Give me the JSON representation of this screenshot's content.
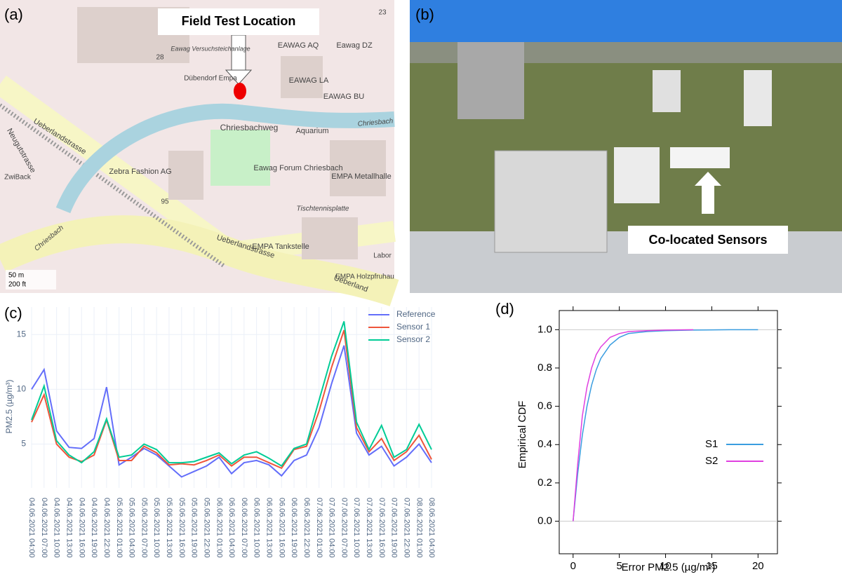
{
  "map": {
    "label": "(a)",
    "callout": "Field Test Location",
    "places": [
      "Eawag Versuchsteichanlage",
      "EAWAG AQ",
      "Eawag DZ",
      "Dübendorf Empa",
      "EAWAG LA",
      "EAWAG BU",
      "Chriesbachweg",
      "Aquarium",
      "Chriesbach",
      "Ueberlandstrasse",
      "Neugutstrasse",
      "Zebra Fashion AG",
      "Eawag Forum Chriesbach",
      "EMPA Metallhalle",
      "Tischtennisplatte",
      "EMPA Tankstelle",
      "EMPA Holzpfruhau",
      "Labor",
      "Ueberlandstrasse",
      "Ueberland",
      "Chriesbach",
      "ZwiBack",
      "28",
      "95",
      "23"
    ],
    "scale": [
      "50 m",
      "200 ft"
    ]
  },
  "photo": {
    "label": "(b)",
    "callout": "Co-located Sensors"
  },
  "chart_data": [
    {
      "type": "line",
      "panel_label": "(c)",
      "y_label": "PM2.5 (µg/m³)",
      "categories": [
        "04.06.2021 04:00",
        "04.06.2021 07:00",
        "04.06.2021 10:00",
        "04.06.2021 13:00",
        "04.06.2021 16:00",
        "04.06.2021 19:00",
        "04.06.2021 22:00",
        "05.06.2021 01:00",
        "05.06.2021 04:00",
        "05.06.2021 07:00",
        "05.06.2021 10:00",
        "05.06.2021 13:00",
        "05.06.2021 16:00",
        "05.06.2021 19:00",
        "05.06.2021 22:00",
        "06.06.2021 01:00",
        "06.06.2021 04:00",
        "06.06.2021 07:00",
        "06.06.2021 10:00",
        "06.06.2021 13:00",
        "06.06.2021 16:00",
        "06.06.2021 19:00",
        "06.06.2021 22:00",
        "07.06.2021 01:00",
        "07.06.2021 04:00",
        "07.06.2021 07:00",
        "07.06.2021 10:00",
        "07.06.2021 13:00",
        "07.06.2021 16:00",
        "07.06.2021 19:00",
        "07.06.2021 22:00",
        "08.06.2021 01:00",
        "08.06.2021 04:00"
      ],
      "series": [
        {
          "name": "Reference",
          "color": "#636efa",
          "values": [
            10,
            11.8,
            6.2,
            4.7,
            4.6,
            5.5,
            10.2,
            3.1,
            3.8,
            4.6,
            4,
            3,
            2,
            2.5,
            3,
            3.8,
            2.3,
            3.3,
            3.5,
            3.1,
            2.1,
            3.5,
            4,
            6.5,
            10.5,
            14,
            6,
            4,
            4.8,
            3,
            3.8,
            5,
            3.3
          ]
        },
        {
          "name": "Sensor 1",
          "color": "#ef553b",
          "values": [
            7,
            9.5,
            5,
            3.8,
            3.4,
            4,
            7.2,
            3.5,
            3.5,
            4.8,
            4.2,
            3.1,
            3.2,
            3.1,
            3.5,
            4,
            3,
            3.8,
            3.8,
            3.3,
            2.8,
            4.5,
            4.8,
            8,
            12,
            15.4,
            6.5,
            4.3,
            5.5,
            3.5,
            4.3,
            5.8,
            3.6
          ]
        },
        {
          "name": "Sensor 2",
          "color": "#00cc96",
          "values": [
            7.2,
            10.3,
            5.3,
            4,
            3.3,
            4.3,
            7.3,
            3.8,
            4,
            5,
            4.5,
            3.3,
            3.3,
            3.4,
            3.8,
            4.2,
            3.2,
            4,
            4.3,
            3.7,
            3,
            4.6,
            5,
            9,
            13,
            16.2,
            7,
            4.5,
            6.7,
            3.8,
            4.5,
            6.8,
            4.5
          ]
        }
      ],
      "ylim": [
        1,
        17
      ],
      "yticks": [
        5,
        10,
        15
      ],
      "grid": true,
      "legend": "top-right"
    },
    {
      "type": "cdf",
      "panel_label": "(d)",
      "x_label": "Error PM2.5 (µg/m³)",
      "y_label": "Empirical CDF",
      "series": [
        {
          "name": "S1",
          "color": "#3a9de0",
          "x": [
            0,
            0.5,
            1,
            1.5,
            2,
            2.5,
            3,
            4,
            5,
            6,
            8,
            10,
            13,
            17,
            20
          ],
          "values": [
            0,
            0.25,
            0.45,
            0.6,
            0.71,
            0.79,
            0.85,
            0.92,
            0.96,
            0.98,
            0.99,
            0.995,
            0.998,
            1,
            1
          ]
        },
        {
          "name": "S2",
          "color": "#e040e0",
          "x": [
            0,
            0.5,
            1,
            1.5,
            2,
            2.5,
            3,
            4,
            5,
            6,
            8,
            10,
            13
          ],
          "values": [
            0,
            0.3,
            0.55,
            0.7,
            0.8,
            0.87,
            0.91,
            0.96,
            0.98,
            0.99,
            0.995,
            0.998,
            1
          ]
        }
      ],
      "xlim": [
        -1.5,
        22.1
      ],
      "ylim": [
        -0.17,
        1.1
      ],
      "xticks": [
        0,
        5,
        10,
        15,
        20
      ],
      "yticks": [
        {
          "value": 0,
          "label": "0.0"
        },
        0.2,
        0.4,
        0.6,
        0.8,
        {
          "value": 1,
          "label": "1.0"
        }
      ],
      "legend": "right"
    }
  ]
}
